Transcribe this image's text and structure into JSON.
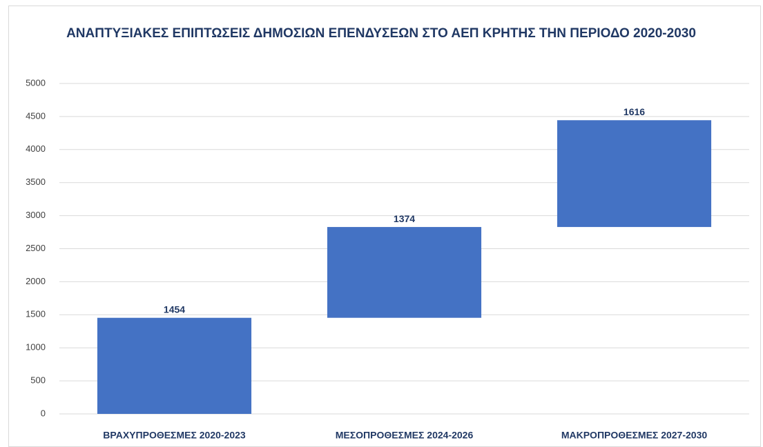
{
  "chart_data": {
    "type": "waterfall",
    "title": "ΑΝΑΠΤΥΞΙΑΚΕΣ ΕΠΙΠΤΩΣΕΙΣ ΔΗΜΟΣΙΩΝ ΕΠΕΝΔΥΣΕΩΝ ΣΤΟ ΑΕΠ ΚΡΗΤΗΣ ΤΗΝ ΠΕΡΙΟΔΟ 2020-2030",
    "categories": [
      "ΒΡΑΧΥΠΡΟΘΕΣΜΕΣ 2020-2023",
      "ΜΕΣΟΠΡΟΘΕΣΜΕΣ 2024-2026",
      "ΜΑΚΡΟΠΡΟΘΕΣΜΕΣ 2027-2030"
    ],
    "values": [
      1454,
      1374,
      1616
    ],
    "color": "#4472c4",
    "ylim": [
      0,
      5000
    ],
    "yticks": [
      0,
      500,
      1000,
      1500,
      2000,
      2500,
      3000,
      3500,
      4000,
      4500,
      5000
    ],
    "grid": true
  }
}
